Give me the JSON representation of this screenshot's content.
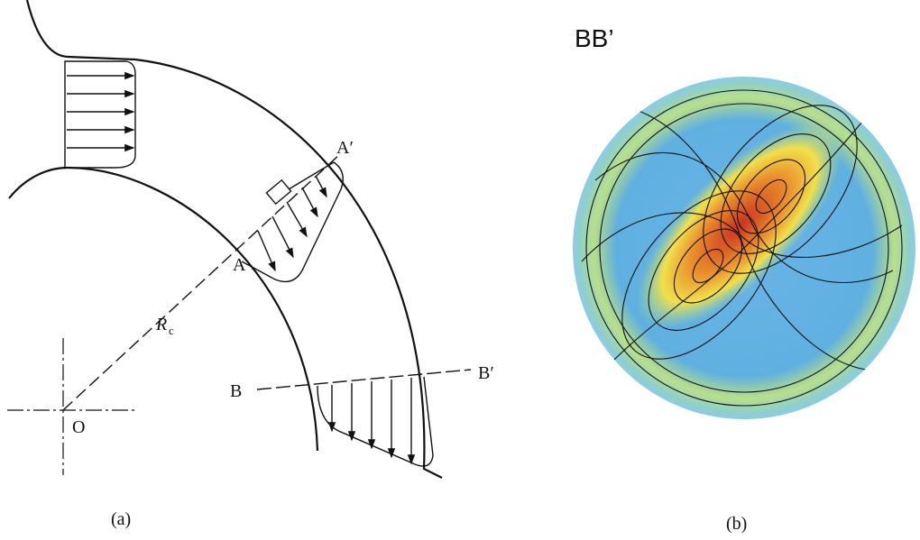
{
  "panel_a": {
    "labels": {
      "a_prime": "A′",
      "a": "A",
      "radius": "R",
      "radius_sub": "c",
      "b": "B",
      "b_prime": "B′",
      "origin": "O"
    },
    "caption": "(a)"
  },
  "panel_b": {
    "title": "BB’",
    "caption": "(b)"
  }
}
